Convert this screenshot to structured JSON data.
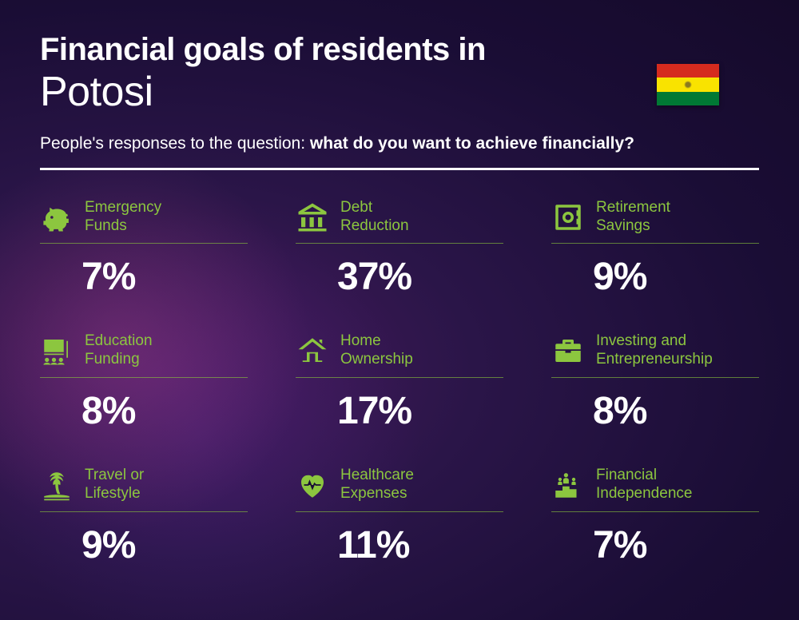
{
  "header": {
    "title_line1": "Financial goals of residents in",
    "title_line2": "Potosi",
    "subtitle_prefix": "People's responses to the question: ",
    "subtitle_bold": "what do you want to achieve financially?"
  },
  "flag": {
    "stripes": [
      "#d52b1e",
      "#f9e300",
      "#007934"
    ]
  },
  "accent_color": "#8cc63f",
  "items": [
    {
      "icon": "piggy-bank",
      "label_l1": "Emergency",
      "label_l2": "Funds",
      "percent": "7%"
    },
    {
      "icon": "bank",
      "label_l1": "Debt",
      "label_l2": "Reduction",
      "percent": "37%"
    },
    {
      "icon": "safe",
      "label_l1": "Retirement",
      "label_l2": "Savings",
      "percent": "9%"
    },
    {
      "icon": "education",
      "label_l1": "Education",
      "label_l2": "Funding",
      "percent": "8%"
    },
    {
      "icon": "house",
      "label_l1": "Home",
      "label_l2": "Ownership",
      "percent": "17%"
    },
    {
      "icon": "briefcase",
      "label_l1": "Investing and",
      "label_l2": "Entrepreneurship",
      "percent": "8%"
    },
    {
      "icon": "palm",
      "label_l1": "Travel or",
      "label_l2": "Lifestyle",
      "percent": "9%"
    },
    {
      "icon": "heart",
      "label_l1": "Healthcare",
      "label_l2": "Expenses",
      "percent": "11%"
    },
    {
      "icon": "podium",
      "label_l1": "Financial",
      "label_l2": "Independence",
      "percent": "7%"
    }
  ]
}
